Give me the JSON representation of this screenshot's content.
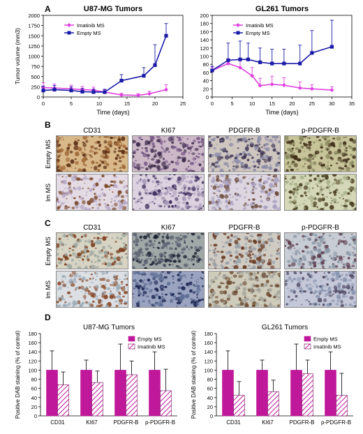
{
  "panels": {
    "A": "A",
    "B": "B",
    "C": "C",
    "D": "D"
  },
  "micro_B": {
    "columns": [
      "CD31",
      "KI67",
      "PDGFR-B",
      "p-PDGFR-B"
    ],
    "rows": [
      "Empty MS",
      "Im MS"
    ]
  },
  "micro_C": {
    "columns": [
      "CD31",
      "KI67",
      "PDGFR-B",
      "p-PDGFR-B"
    ],
    "rows": [
      "Empty MS",
      "Im MS"
    ]
  },
  "colors": {
    "empty": "#1a1aa8",
    "imatinib": "#e040e0",
    "bar_empty": "#c0189a",
    "bar_imatinib_hatch": "#c0189a"
  },
  "chart_data": [
    {
      "type": "line",
      "title": "U87-MG Tumors",
      "xlabel": "Time (days)",
      "ylabel": "Tumor volume (mm3)",
      "xlim": [
        0,
        25
      ],
      "ylim": [
        0,
        2000
      ],
      "xticks": [
        0,
        5,
        10,
        15,
        20,
        25
      ],
      "yticks": [
        0,
        250,
        500,
        750,
        1000,
        1250,
        1500,
        1750,
        2000
      ],
      "legend": "top-left",
      "series": [
        {
          "name": "Imatinib MS",
          "color": "#e040e0",
          "marker": "diamond",
          "x": [
            0,
            2,
            5,
            7,
            9,
            11,
            14,
            17,
            19,
            22
          ],
          "y": [
            230,
            220,
            200,
            180,
            170,
            120,
            50,
            40,
            80,
            180
          ],
          "err": [
            120,
            100,
            90,
            80,
            70,
            60,
            40,
            40,
            60,
            120
          ]
        },
        {
          "name": "Empty MS",
          "color": "#1a1aa8",
          "marker": "square",
          "x": [
            0,
            2,
            5,
            7,
            9,
            11,
            14,
            18,
            20,
            22
          ],
          "y": [
            160,
            180,
            160,
            130,
            120,
            120,
            400,
            520,
            780,
            1500
          ],
          "err": [
            110,
            100,
            90,
            80,
            70,
            70,
            150,
            200,
            500,
            300
          ]
        }
      ]
    },
    {
      "type": "line",
      "title": "GL261 Tumors",
      "xlabel": "Time (days)",
      "ylabel": "",
      "xlim": [
        0,
        35
      ],
      "ylim": [
        0,
        200
      ],
      "xticks": [
        0,
        5,
        10,
        15,
        20,
        25,
        30,
        35
      ],
      "yticks": [
        0,
        20,
        40,
        60,
        80,
        100,
        120,
        140,
        160,
        180,
        200
      ],
      "legend": "top-left",
      "series": [
        {
          "name": "Imatinib MS",
          "color": "#e040e0",
          "marker": "diamond",
          "x": [
            0,
            4,
            7,
            10,
            12,
            15,
            18,
            22,
            25,
            30
          ],
          "y": [
            65,
            82,
            72,
            52,
            28,
            31,
            29,
            22,
            20,
            17
          ],
          "err": [
            8,
            10,
            20,
            20,
            18,
            20,
            18,
            15,
            10,
            8
          ]
        },
        {
          "name": "Empty MS",
          "color": "#1a1aa8",
          "marker": "square",
          "x": [
            0,
            4,
            7,
            9,
            12,
            15,
            18,
            22,
            25,
            30
          ],
          "y": [
            65,
            90,
            92,
            92,
            85,
            82,
            82,
            82,
            108,
            123
          ],
          "err": [
            10,
            42,
            45,
            40,
            35,
            35,
            35,
            45,
            55,
            65
          ]
        }
      ]
    },
    {
      "type": "bar",
      "title": "U87-MG Tumors",
      "xlabel": "",
      "ylabel": "Positive DAB staining (% of control)",
      "categories": [
        "CD31",
        "KI67",
        "PDGFR-B",
        "p-PDGFR-B"
      ],
      "ylim": [
        0,
        180
      ],
      "yticks": [
        0,
        20,
        40,
        60,
        80,
        100,
        120,
        140,
        160,
        180
      ],
      "legend": "top-right",
      "series": [
        {
          "name": "Empty MS",
          "values": [
            100,
            100,
            100,
            100
          ],
          "err": [
            42,
            22,
            57,
            40
          ]
        },
        {
          "name": "Imatinib MS",
          "values": [
            68,
            73,
            90,
            55
          ],
          "err": [
            28,
            25,
            30,
            47
          ]
        }
      ]
    },
    {
      "type": "bar",
      "title": "GL261 Tumors",
      "xlabel": "",
      "ylabel": "Positive DAB staining (% of control)",
      "categories": [
        "CD31",
        "KI67",
        "PDGFR-B",
        "p-PDGFR-B"
      ],
      "ylim": [
        0,
        180
      ],
      "yticks": [
        0,
        20,
        40,
        60,
        80,
        100,
        120,
        140,
        160,
        180
      ],
      "legend": "top-right",
      "series": [
        {
          "name": "Empty MS",
          "values": [
            100,
            100,
            100,
            100
          ],
          "err": [
            42,
            22,
            57,
            40
          ]
        },
        {
          "name": "Imatinib MS",
          "values": [
            45,
            53,
            92,
            45
          ],
          "err": [
            30,
            25,
            30,
            48
          ]
        }
      ]
    }
  ]
}
